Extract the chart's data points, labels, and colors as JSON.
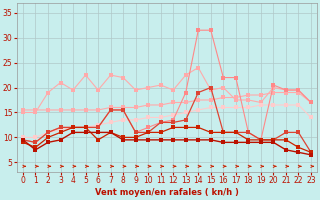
{
  "x": [
    0,
    1,
    2,
    3,
    4,
    5,
    6,
    7,
    8,
    9,
    10,
    11,
    12,
    13,
    14,
    15,
    16,
    17,
    18,
    19,
    20,
    21,
    22,
    23
  ],
  "line_dark1": [
    9.5,
    7.5,
    9,
    9.5,
    11,
    11,
    11,
    11,
    9.5,
    9.5,
    9.5,
    9.5,
    9.5,
    9.5,
    9.5,
    9.5,
    9,
    9,
    9,
    9,
    9,
    7.5,
    7,
    6.5
  ],
  "line_dark2": [
    9,
    8,
    10,
    11,
    12,
    12,
    9.5,
    11,
    10,
    10,
    11,
    11,
    12,
    12,
    12,
    11,
    11,
    11,
    9.5,
    9.5,
    9.5,
    9.5,
    8,
    7
  ],
  "line_med1": [
    9.5,
    9,
    11,
    12,
    12,
    12,
    12,
    15.5,
    15.5,
    11,
    11,
    13,
    13,
    13.5,
    19,
    20,
    11,
    11,
    11,
    9.5,
    9.5,
    11,
    11,
    7
  ],
  "line_trend1": [
    15.5,
    15.5,
    15.5,
    15.5,
    15.5,
    15.5,
    15.5,
    16,
    16,
    16,
    16.5,
    16.5,
    17,
    17,
    17.5,
    17.5,
    18,
    18,
    18.5,
    18.5,
    19,
    19,
    19,
    17
  ],
  "line_trend2": [
    10,
    10,
    11,
    11.5,
    12,
    12,
    12.5,
    13,
    13.5,
    13.5,
    14,
    14,
    14.5,
    15,
    15.5,
    16,
    16,
    16,
    16,
    16.5,
    16.5,
    16.5,
    16.5,
    14
  ],
  "line_pink1": [
    15,
    15,
    19,
    21,
    19.5,
    22.5,
    19.5,
    22.5,
    22,
    19.5,
    20,
    20.5,
    19.5,
    22.5,
    24,
    19.5,
    20,
    17.5,
    17.5,
    17,
    20,
    19.5,
    19.5,
    17
  ],
  "line_peak": [
    9.5,
    9,
    11,
    12,
    12,
    12,
    12,
    15.5,
    15.5,
    11,
    12,
    13,
    13.5,
    19,
    31.5,
    31.5,
    22,
    22,
    11,
    9.5,
    20.5,
    19.5,
    19.5,
    17
  ],
  "bg_color": "#c8eeed",
  "grid_color": "#b0c8c8",
  "color_dark_red": "#bb1100",
  "color_dark_red2": "#cc2200",
  "color_med_red": "#dd4433",
  "color_light_pink": "#ffaaaa",
  "color_pink_peak": "#ff8888",
  "color_arrow": "#cc2200",
  "xlabel": "Vent moyen/en rafales ( kn/h )",
  "ylim": [
    3,
    37
  ],
  "xlim": [
    -0.5,
    23.5
  ],
  "yticks": [
    5,
    10,
    15,
    20,
    25,
    30,
    35
  ],
  "xticks": [
    0,
    1,
    2,
    3,
    4,
    5,
    6,
    7,
    8,
    9,
    10,
    11,
    12,
    13,
    14,
    15,
    16,
    17,
    18,
    19,
    20,
    21,
    22,
    23
  ]
}
